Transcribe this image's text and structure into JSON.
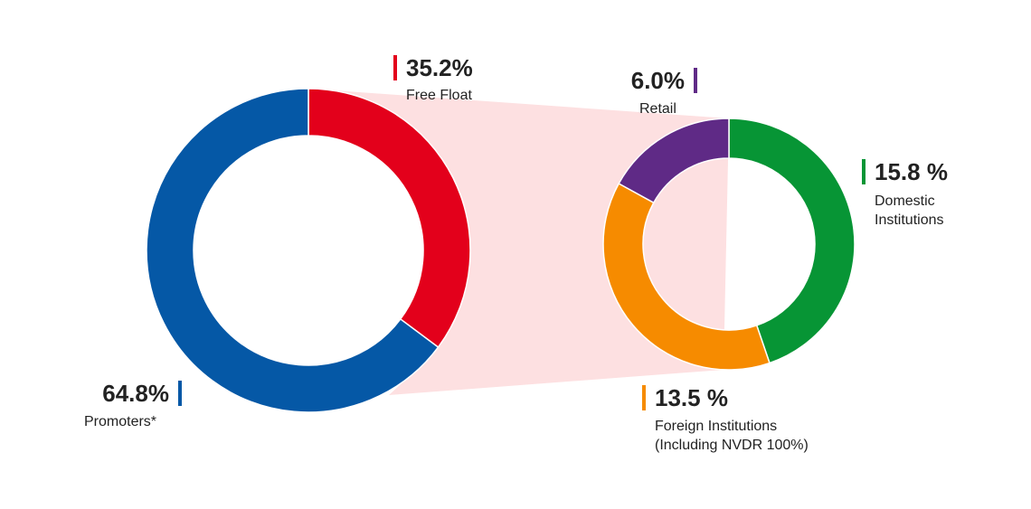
{
  "chart_data": [
    {
      "type": "donut",
      "categories": [
        "Free Float",
        "Promoters*"
      ],
      "values": [
        35.2,
        64.8
      ],
      "value_labels": [
        "35.2%",
        "64.8%"
      ],
      "colors": [
        "#e3001b",
        "#0558a6"
      ]
    },
    {
      "type": "donut",
      "categories": [
        "Domestic\nInstitutions",
        "Foreign Institutions\n(Including NVDR 100%)",
        "Retail"
      ],
      "values": [
        15.8,
        13.5,
        6.0
      ],
      "value_labels": [
        "15.8 %",
        "13.5 %",
        "6.0%"
      ],
      "colors": [
        "#079535",
        "#f68b00",
        "#5f2a86"
      ]
    }
  ]
}
